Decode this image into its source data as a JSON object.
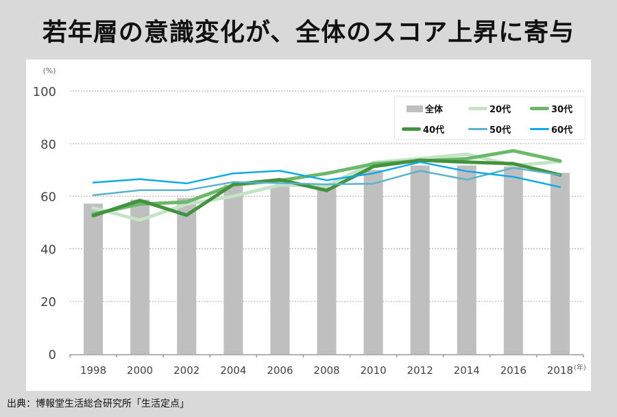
{
  "title": "若年層の意識変化が、全体のスコア上昇に寄与",
  "source": "出典：博報堂生活総合研究所「生活定点」",
  "chart_data": {
    "type": "bar",
    "title": "若年層の意識変化が、全体のスコア上昇に寄与",
    "xlabel": "(年)",
    "ylabel": "(%)",
    "ylim": [
      0,
      100
    ],
    "yticks": [
      0,
      20,
      40,
      60,
      80,
      100
    ],
    "grid": true,
    "legend_position": "top-right",
    "categories": [
      "1998",
      "2000",
      "2002",
      "2004",
      "2006",
      "2008",
      "2010",
      "2012",
      "2014",
      "2016",
      "2018"
    ],
    "bar_series": {
      "name": "全体",
      "color": "#bfbfbf",
      "values": [
        57.2,
        58.7,
        59.3,
        64.3,
        64.1,
        63.5,
        70.0,
        71.7,
        71.7,
        71.3,
        68.9
      ]
    },
    "series": [
      {
        "name": "20代",
        "type": "line",
        "color": "#c5e3c6",
        "width": 5,
        "values": [
          55.6,
          50.9,
          57.0,
          60.0,
          64.3,
          63.9,
          72.8,
          74.3,
          76.0,
          71.7,
          73.2
        ]
      },
      {
        "name": "30代",
        "type": "line",
        "color": "#6cb86b",
        "width": 5,
        "values": [
          53.2,
          57.0,
          57.8,
          64.3,
          66.0,
          68.7,
          72.3,
          73.4,
          74.3,
          77.3,
          73.4
        ]
      },
      {
        "name": "40代",
        "type": "line",
        "color": "#43923f",
        "width": 5,
        "values": [
          52.6,
          58.4,
          52.8,
          64.5,
          66.3,
          62.2,
          71.3,
          73.7,
          73.0,
          72.4,
          68.1
        ]
      },
      {
        "name": "50代",
        "type": "line",
        "color": "#5ab2cc",
        "width": 2.5,
        "values": [
          60.4,
          62.3,
          62.3,
          65.4,
          65.0,
          64.5,
          64.8,
          69.7,
          66.3,
          70.8,
          68.1
        ]
      },
      {
        "name": "60代",
        "type": "line",
        "color": "#10a8e6",
        "width": 2.5,
        "values": [
          65.2,
          66.5,
          64.9,
          68.7,
          69.7,
          66.1,
          68.7,
          73.0,
          69.5,
          67.4,
          63.5
        ]
      }
    ]
  }
}
